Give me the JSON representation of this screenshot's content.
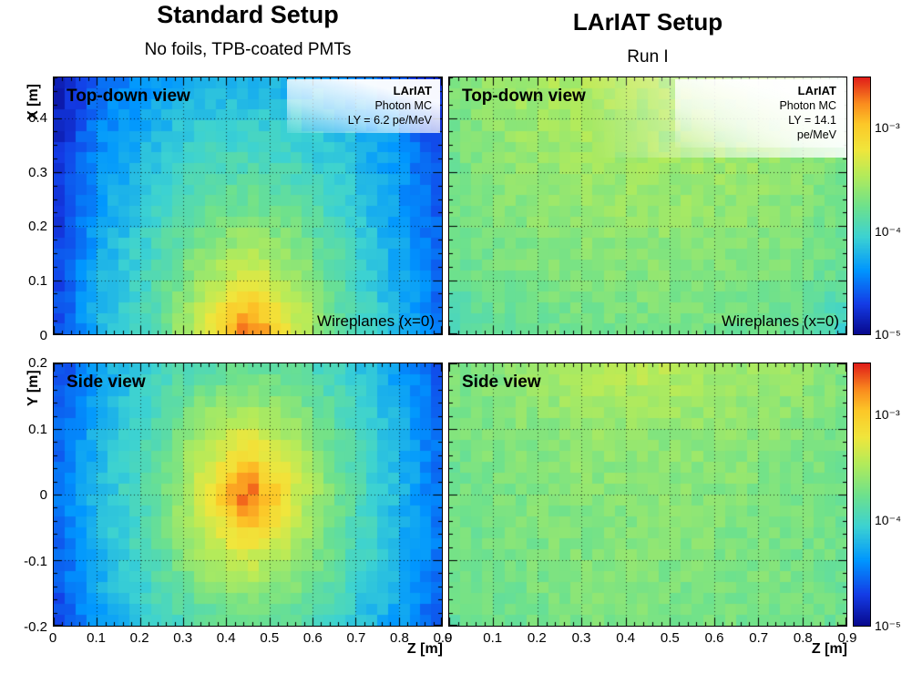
{
  "columns": [
    {
      "title": "Standard Setup",
      "subtitle": "No foils, TPB-coated PMTs"
    },
    {
      "title": "LArIAT Setup",
      "subtitle": "Run I"
    }
  ],
  "colorbar": {
    "scale": "log",
    "zmin": 1e-05,
    "zmax": 0.0032,
    "labels": [
      {
        "label": "10⁻³",
        "exp": -3
      },
      {
        "label": "10⁻⁴",
        "exp": -4
      },
      {
        "label": "10⁻⁵",
        "exp": -5
      }
    ]
  },
  "palette": {
    "stops": [
      [
        0.0,
        [
          8,
          8,
          140
        ]
      ],
      [
        0.12,
        [
          20,
          60,
          230
        ]
      ],
      [
        0.25,
        [
          0,
          150,
          255
        ]
      ],
      [
        0.38,
        [
          60,
          210,
          210
        ]
      ],
      [
        0.5,
        [
          110,
          225,
          140
        ]
      ],
      [
        0.62,
        [
          180,
          235,
          90
        ]
      ],
      [
        0.72,
        [
          240,
          230,
          60
        ]
      ],
      [
        0.82,
        [
          252,
          200,
          40
        ]
      ],
      [
        0.9,
        [
          250,
          140,
          30
        ]
      ],
      [
        1.0,
        [
          225,
          30,
          25
        ]
      ]
    ]
  },
  "chart_data": [
    {
      "id": "standard-topdown",
      "type": "heatmap",
      "view_label": "Top-down view",
      "annotation": "Wireplanes (x=0)",
      "legend": {
        "title": "LArIAT",
        "lines": [
          "Photon MC",
          "LY = 6.2 pe/MeV"
        ]
      },
      "x_axis": {
        "label": "",
        "min": 0,
        "max": 0.9,
        "major_step": 0.1,
        "minor_step": 0.02,
        "major_ticks": [
          0,
          0.1,
          0.2,
          0.3,
          0.4,
          0.5,
          0.6,
          0.7,
          0.8,
          0.9
        ],
        "grid_ticks": [
          0.1,
          0.2,
          0.3,
          0.4,
          0.5,
          0.6,
          0.7,
          0.8
        ],
        "show_tick_labels": false
      },
      "y_axis": {
        "label": "X [m]",
        "min": 0,
        "max": 0.475,
        "major_step": 0.1,
        "minor_step": 0.025,
        "major_ticks": [
          0,
          0.1,
          0.2,
          0.3,
          0.4
        ],
        "grid_ticks": [
          0.1,
          0.2,
          0.3,
          0.4
        ],
        "show_tick_labels": true
      },
      "z_scale": {
        "type": "log",
        "min": 1e-05,
        "max": 0.0032
      },
      "orientation": "rows top to bottom (max X first); columns along Z ascending",
      "z_centers": [
        0.05,
        0.15,
        0.25,
        0.35,
        0.45,
        0.55,
        0.65,
        0.75,
        0.85
      ],
      "row_centers": [
        0.43,
        0.33,
        0.24,
        0.14,
        0.05
      ],
      "values": [
        [
          1.2e-05,
          3e-05,
          4.5e-05,
          5.5e-05,
          6e-05,
          5.5e-05,
          4.5e-05,
          3e-05,
          1.5e-05
        ],
        [
          1.5e-05,
          4e-05,
          6.5e-05,
          9e-05,
          0.0001,
          9e-05,
          7e-05,
          4.5e-05,
          2e-05
        ],
        [
          1.8e-05,
          5e-05,
          9e-05,
          0.00015,
          0.00018,
          0.00015,
          9e-05,
          5e-05,
          2.5e-05
        ],
        [
          2e-05,
          6e-05,
          0.00011,
          0.00026,
          0.00045,
          0.00028,
          0.00012,
          6e-05,
          2.8e-05
        ],
        [
          2.2e-05,
          7e-05,
          0.00013,
          0.00045,
          0.0025,
          0.0005,
          0.00014,
          7e-05,
          3e-05
        ]
      ]
    },
    {
      "id": "lariat-topdown",
      "type": "heatmap",
      "view_label": "Top-down view",
      "annotation": "Wireplanes (x=0)",
      "legend": {
        "title": "LArIAT",
        "lines": [
          "Photon MC",
          "LY = 14.1",
          "pe/MeV"
        ]
      },
      "x_axis": {
        "label": "",
        "min": 0,
        "max": 0.9,
        "major_step": 0.1,
        "minor_step": 0.02,
        "major_ticks": [
          0,
          0.1,
          0.2,
          0.3,
          0.4,
          0.5,
          0.6,
          0.7,
          0.8,
          0.9
        ],
        "grid_ticks": [
          0.1,
          0.2,
          0.3,
          0.4,
          0.5,
          0.6,
          0.7,
          0.8
        ],
        "show_tick_labels": false
      },
      "y_axis": {
        "label": "",
        "min": 0,
        "max": 0.475,
        "major_step": 0.1,
        "minor_step": 0.025,
        "major_ticks": [
          0,
          0.1,
          0.2,
          0.3,
          0.4
        ],
        "grid_ticks": [
          0.1,
          0.2,
          0.3,
          0.4
        ],
        "show_tick_labels": false
      },
      "z_scale": {
        "type": "log",
        "min": 1e-05,
        "max": 0.0032
      },
      "orientation": "rows top to bottom (max X first); columns along Z ascending",
      "z_centers": [
        0.05,
        0.15,
        0.25,
        0.35,
        0.45,
        0.55,
        0.65,
        0.75,
        0.85
      ],
      "row_centers": [
        0.43,
        0.33,
        0.24,
        0.14,
        0.05
      ],
      "values": [
        [
          0.0002,
          0.00028,
          0.00033,
          0.00035,
          0.00035,
          0.00034,
          0.00033,
          0.0003,
          0.00022
        ],
        [
          0.00019,
          0.00025,
          0.00029,
          0.00031,
          0.00031,
          0.0003,
          0.00029,
          0.00027,
          0.0002
        ],
        [
          0.00018,
          0.00022,
          0.00025,
          0.00027,
          0.00027,
          0.00026,
          0.00025,
          0.00023,
          0.00018
        ],
        [
          0.00016,
          0.00019,
          0.00021,
          0.00022,
          0.00023,
          0.00022,
          0.00021,
          0.0002,
          0.00016
        ],
        [
          0.0001,
          0.00016,
          0.00018,
          0.00019,
          0.00019,
          0.00019,
          0.00018,
          0.00016,
          9e-05
        ]
      ]
    },
    {
      "id": "standard-side",
      "type": "heatmap",
      "view_label": "Side view",
      "x_axis": {
        "label": "Z [m]",
        "min": 0,
        "max": 0.9,
        "major_step": 0.1,
        "minor_step": 0.02,
        "major_ticks": [
          0,
          0.1,
          0.2,
          0.3,
          0.4,
          0.5,
          0.6,
          0.7,
          0.8,
          0.9
        ],
        "grid_ticks": [
          0.1,
          0.2,
          0.3,
          0.4,
          0.5,
          0.6,
          0.7,
          0.8
        ],
        "show_tick_labels": true
      },
      "y_axis": {
        "label": "Y [m]",
        "min": -0.2,
        "max": 0.2,
        "major_step": 0.1,
        "minor_step": 0.02,
        "major_ticks": [
          -0.2,
          -0.1,
          0,
          0.1,
          0.2
        ],
        "grid_ticks": [
          -0.1,
          0,
          0.1
        ],
        "show_tick_labels": true
      },
      "z_scale": {
        "type": "log",
        "min": 1e-05,
        "max": 0.0032
      },
      "orientation": "rows top to bottom (max Y first); columns along Z ascending",
      "z_centers": [
        0.05,
        0.15,
        0.25,
        0.35,
        0.45,
        0.55,
        0.65,
        0.75,
        0.85
      ],
      "row_centers": [
        0.16,
        0.08,
        0,
        -0.08,
        -0.16
      ],
      "values": [
        [
          2e-05,
          5e-05,
          9e-05,
          0.00013,
          0.00015,
          0.00013,
          9e-05,
          5e-05,
          2.5e-05
        ],
        [
          2.5e-05,
          6.5e-05,
          0.00012,
          0.00028,
          0.00045,
          0.00028,
          0.00013,
          6.5e-05,
          3e-05
        ],
        [
          3e-05,
          7e-05,
          0.00014,
          0.0005,
          0.0025,
          0.0005,
          0.00015,
          7e-05,
          3e-05
        ],
        [
          2.5e-05,
          6.5e-05,
          0.00012,
          0.00028,
          0.00045,
          0.00028,
          0.00013,
          6.5e-05,
          3e-05
        ],
        [
          2e-05,
          5e-05,
          9e-05,
          0.00013,
          0.00015,
          0.00013,
          9e-05,
          5e-05,
          2.5e-05
        ]
      ]
    },
    {
      "id": "lariat-side",
      "type": "heatmap",
      "view_label": "Side view",
      "x_axis": {
        "label": "Z [m]",
        "min": 0,
        "max": 0.9,
        "major_step": 0.1,
        "minor_step": 0.02,
        "major_ticks": [
          0,
          0.1,
          0.2,
          0.3,
          0.4,
          0.5,
          0.6,
          0.7,
          0.8,
          0.9
        ],
        "grid_ticks": [
          0.1,
          0.2,
          0.3,
          0.4,
          0.5,
          0.6,
          0.7,
          0.8
        ],
        "show_tick_labels": true
      },
      "y_axis": {
        "label": "",
        "min": -0.2,
        "max": 0.2,
        "major_step": 0.1,
        "minor_step": 0.02,
        "major_ticks": [
          -0.2,
          -0.1,
          0,
          0.1,
          0.2
        ],
        "grid_ticks": [
          -0.1,
          0,
          0.1
        ],
        "show_tick_labels": false
      },
      "z_scale": {
        "type": "log",
        "min": 1e-05,
        "max": 0.0032
      },
      "orientation": "rows top to bottom (max Y first); columns along Z ascending",
      "z_centers": [
        0.05,
        0.15,
        0.25,
        0.35,
        0.45,
        0.55,
        0.65,
        0.75,
        0.85
      ],
      "row_centers": [
        0.16,
        0.08,
        0,
        -0.08,
        -0.16
      ],
      "values": [
        [
          0.0002,
          0.00024,
          0.0003,
          0.00038,
          0.0004,
          0.00034,
          0.00029,
          0.00027,
          0.00021
        ],
        [
          0.00019,
          0.00022,
          0.00024,
          0.00026,
          0.00026,
          0.00025,
          0.00024,
          0.00023,
          0.00019
        ],
        [
          0.00018,
          0.0002,
          0.00022,
          0.00023,
          0.00023,
          0.00023,
          0.00022,
          0.00021,
          0.00018
        ],
        [
          0.00017,
          0.00019,
          0.00021,
          0.00022,
          0.00022,
          0.00021,
          0.00021,
          0.0002,
          0.00018
        ],
        [
          0.00016,
          0.00018,
          0.00019,
          0.00021,
          0.00021,
          0.0002,
          0.00019,
          0.00019,
          0.00017
        ]
      ]
    }
  ]
}
